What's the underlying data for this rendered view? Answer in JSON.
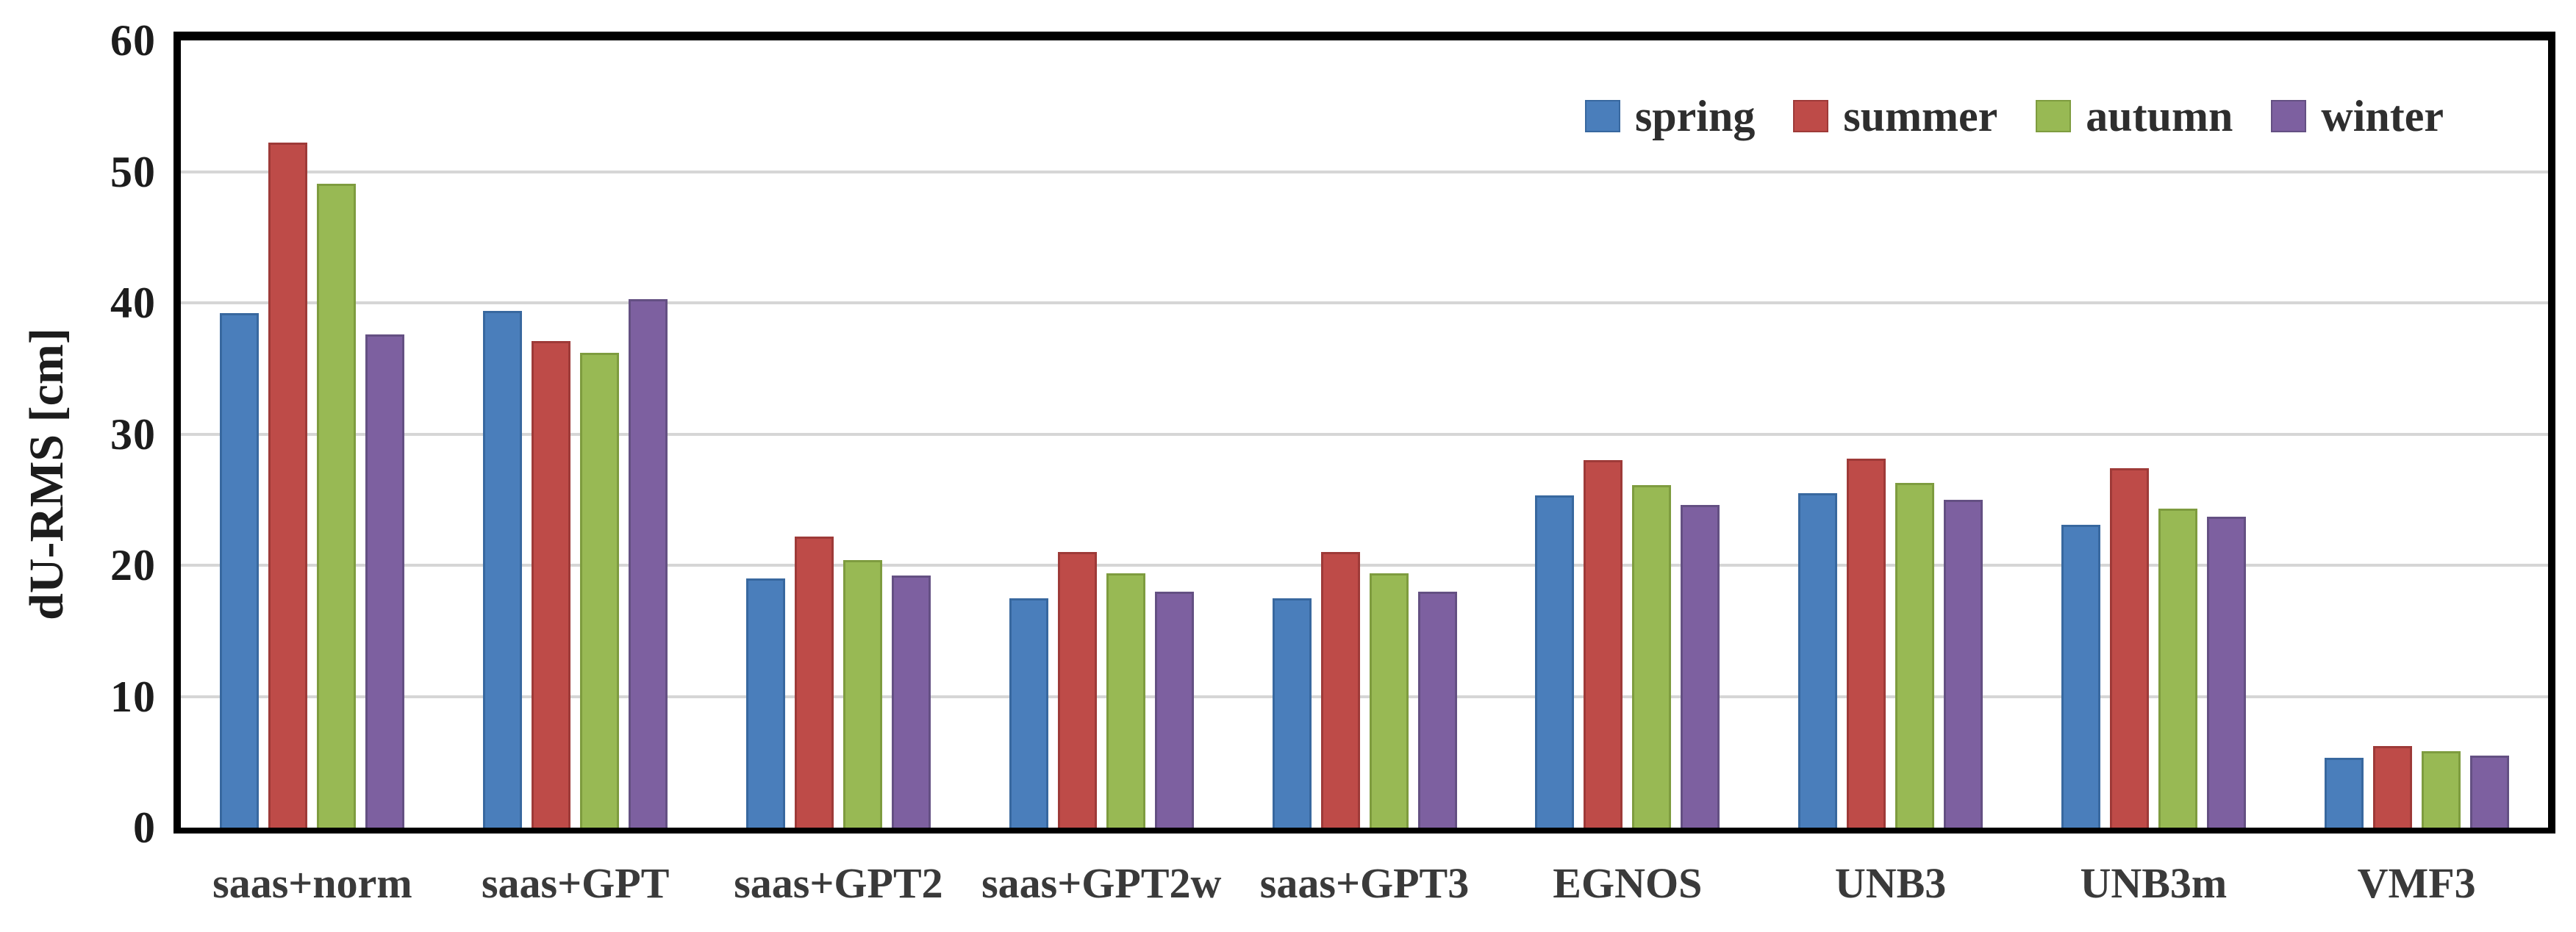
{
  "chart_data": {
    "type": "bar",
    "title": "",
    "xlabel": "",
    "ylabel": "dU-RMS [cm]",
    "ylim": [
      0,
      60
    ],
    "yticks": [
      0,
      10,
      20,
      30,
      40,
      50,
      60
    ],
    "grid": "horizontal",
    "gridline_color": "#d6d6d6",
    "plot_border_color": "#000000",
    "legend_position": "top-right",
    "categories": [
      "saas+norm",
      "saas+GPT",
      "saas+GPT2",
      "saas+GPT2w",
      "saas+GPT3",
      "EGNOS",
      "UNB3",
      "UNB3m",
      "VMF3"
    ],
    "series": [
      {
        "name": "spring",
        "color": "#4a7ebb",
        "border_color": "#38689f",
        "values": [
          39.2,
          39.4,
          19.0,
          17.5,
          17.5,
          25.3,
          25.5,
          23.1,
          5.3
        ]
      },
      {
        "name": "summer",
        "color": "#be4b48",
        "border_color": "#9e3a38",
        "values": [
          52.2,
          37.1,
          22.2,
          21.0,
          21.0,
          28.0,
          28.1,
          27.4,
          6.2
        ]
      },
      {
        "name": "autumn",
        "color": "#98b954",
        "border_color": "#7e9c3f",
        "values": [
          49.1,
          36.2,
          20.4,
          19.4,
          19.4,
          26.1,
          26.3,
          24.3,
          5.8
        ]
      },
      {
        "name": "winter",
        "color": "#7d60a0",
        "border_color": "#645083",
        "values": [
          37.6,
          40.3,
          19.2,
          18.0,
          18.0,
          24.6,
          25.0,
          23.7,
          5.5
        ]
      }
    ]
  }
}
